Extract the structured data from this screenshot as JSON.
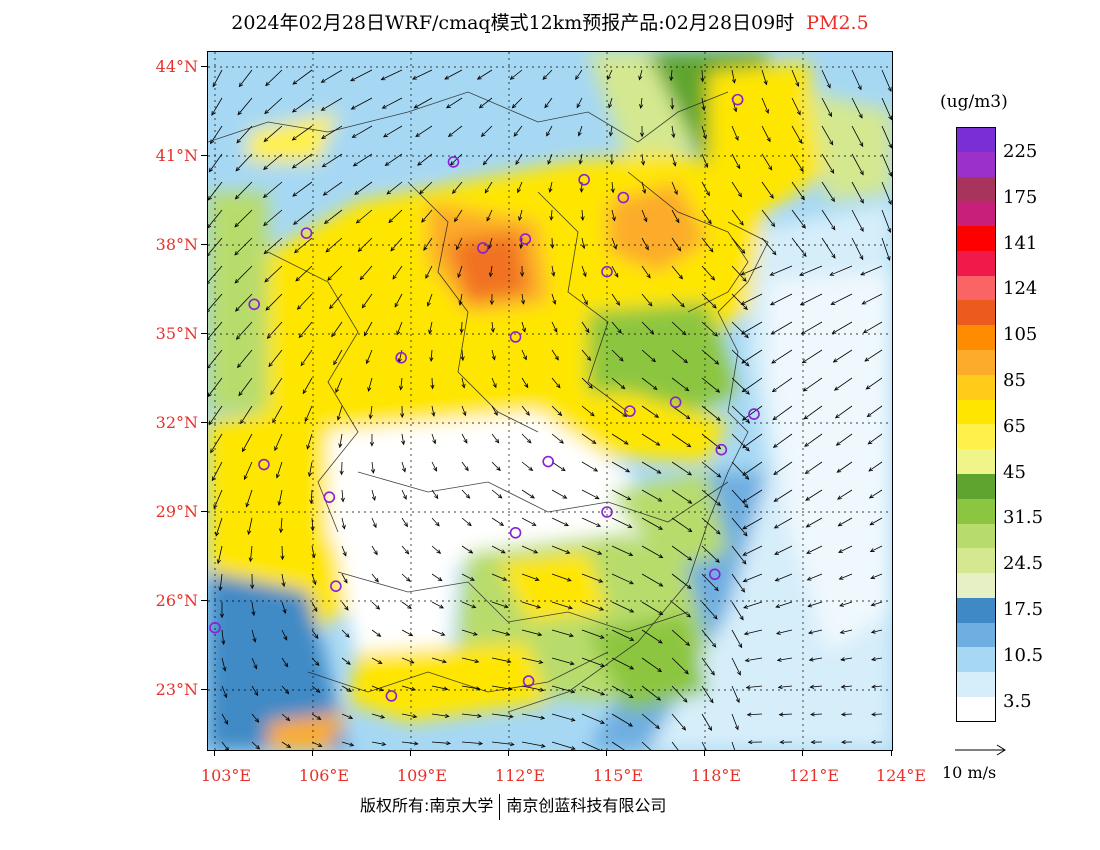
{
  "title": {
    "main": "2024年02月28日WRF/cmaq模式12km预报产品:02月28日09时",
    "pollutant": "PM2.5"
  },
  "map": {
    "lat_labels": [
      "44°N",
      "41°N",
      "38°N",
      "35°N",
      "32°N",
      "29°N",
      "26°N",
      "23°N"
    ],
    "lon_labels": [
      "103°E",
      "106°E",
      "109°E",
      "112°E",
      "115°E",
      "118°E",
      "121°E",
      "124°E"
    ],
    "lon_range": [
      103,
      124
    ],
    "lat_range": [
      21,
      44.5
    ],
    "station_marker_color": "#8a1fd8",
    "stations": [
      {
        "lon": 119.0,
        "lat": 42.9
      },
      {
        "lon": 110.3,
        "lat": 40.8
      },
      {
        "lon": 114.3,
        "lat": 40.2
      },
      {
        "lon": 115.5,
        "lat": 39.6
      },
      {
        "lon": 105.8,
        "lat": 38.4
      },
      {
        "lon": 111.2,
        "lat": 37.9
      },
      {
        "lon": 112.5,
        "lat": 38.2
      },
      {
        "lon": 115.0,
        "lat": 37.1
      },
      {
        "lon": 104.2,
        "lat": 36.0
      },
      {
        "lon": 112.2,
        "lat": 34.9
      },
      {
        "lon": 108.7,
        "lat": 34.2
      },
      {
        "lon": 117.1,
        "lat": 32.7
      },
      {
        "lon": 115.7,
        "lat": 32.4
      },
      {
        "lon": 119.5,
        "lat": 32.3
      },
      {
        "lon": 118.5,
        "lat": 31.1
      },
      {
        "lon": 104.5,
        "lat": 30.6
      },
      {
        "lon": 113.2,
        "lat": 30.7
      },
      {
        "lon": 106.5,
        "lat": 29.5
      },
      {
        "lon": 115.0,
        "lat": 29.0
      },
      {
        "lon": 112.2,
        "lat": 28.3
      },
      {
        "lon": 106.7,
        "lat": 26.5
      },
      {
        "lon": 118.3,
        "lat": 26.9
      },
      {
        "lon": 103.0,
        "lat": 25.1
      },
      {
        "lon": 108.4,
        "lat": 22.8
      },
      {
        "lon": 112.6,
        "lat": 23.3
      }
    ]
  },
  "legend": {
    "unit": "(ug/m3)",
    "labels": [
      "225",
      "175",
      "141",
      "124",
      "105",
      "85",
      "65",
      "45",
      "31.5",
      "24.5",
      "17.5",
      "10.5",
      "3.5"
    ],
    "colors": [
      "#7a2fd6",
      "#9b31c9",
      "#a8335c",
      "#c8207a",
      "#ff0000",
      "#f01a4a",
      "#fa6464",
      "#ec5a1e",
      "#ff8c00",
      "#fcac2a",
      "#ffcc1a",
      "#ffe600",
      "#fff04a",
      "#f0f58a",
      "#5ea42e",
      "#8cc640",
      "#b8dc6c",
      "#d4e890",
      "#e6f0c4",
      "#3f8ac6",
      "#6eaee0",
      "#a6d8f4",
      "#d6eefa",
      "#ffffff"
    ]
  },
  "wind_reference": {
    "label": "10 m/s"
  },
  "footer": {
    "copyright_left": "版权所有:南京大学",
    "copyright_right": "南京创蓝科技有限公司"
  }
}
